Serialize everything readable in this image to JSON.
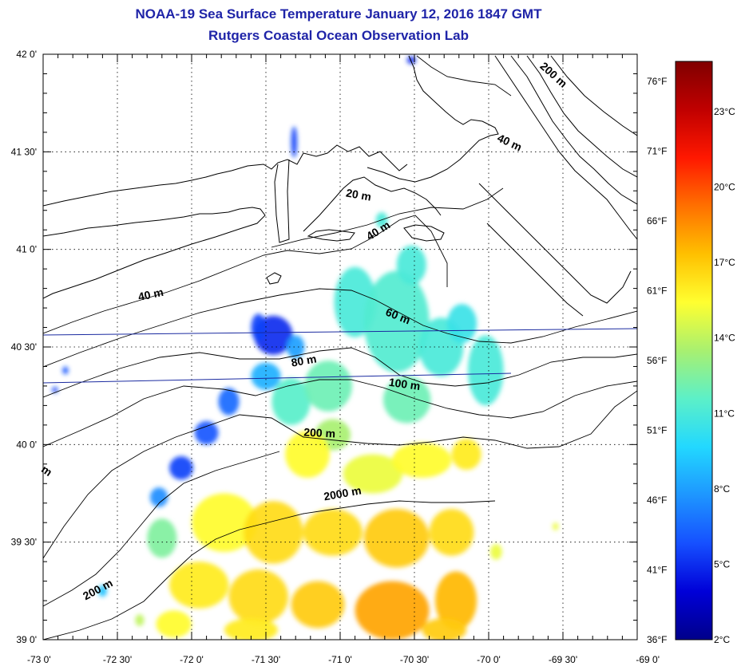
{
  "title": {
    "line1": "NOAA-19 Sea Surface Temperature January 12, 2016 1847 GMT",
    "line2": "Rutgers Coastal Ocean Observation Lab"
  },
  "map": {
    "lon_range": [
      -73,
      -69
    ],
    "lat_range": [
      39,
      42
    ],
    "lon_ticks": [
      {
        "value": -73.0,
        "label": "-73 0'"
      },
      {
        "value": -72.5,
        "label": "-72 30'"
      },
      {
        "value": -72.0,
        "label": "-72 0'"
      },
      {
        "value": -71.5,
        "label": "-71 30'"
      },
      {
        "value": -71.0,
        "label": "-71 0'"
      },
      {
        "value": -70.5,
        "label": "-70 30'"
      },
      {
        "value": -70.0,
        "label": "-70 0'"
      },
      {
        "value": -69.5,
        "label": "-69 30'"
      },
      {
        "value": -69.0,
        "label": "-69 0'"
      }
    ],
    "lat_ticks": [
      {
        "value": 39.0,
        "label": "39 0'"
      },
      {
        "value": 39.5,
        "label": "39 30'"
      },
      {
        "value": 40.0,
        "label": "40 0'"
      },
      {
        "value": 40.5,
        "label": "40 30'"
      },
      {
        "value": 41.0,
        "label": "41 0'"
      },
      {
        "value": 41.5,
        "label": "41 30'"
      },
      {
        "value": 42.0,
        "label": "42 0'"
      }
    ],
    "grid": "dotted",
    "right_f_ticks": [
      {
        "value": 36,
        "label": "36°F"
      },
      {
        "value": 41,
        "label": "41°F"
      },
      {
        "value": 46,
        "label": "46°F"
      },
      {
        "value": 51,
        "label": "51°F"
      },
      {
        "value": 56,
        "label": "56°F"
      },
      {
        "value": 61,
        "label": "61°F"
      },
      {
        "value": 66,
        "label": "66°F"
      },
      {
        "value": 71,
        "label": "71°F"
      },
      {
        "value": 76,
        "label": "76°F"
      }
    ],
    "depth_labels": [
      {
        "text": "20 m",
        "lon": -70.88,
        "lat": 41.26,
        "rot": 10
      },
      {
        "text": "40 m",
        "lon": -70.73,
        "lat": 41.08,
        "rot": -32
      },
      {
        "text": "40 m",
        "lon": -72.27,
        "lat": 40.75,
        "rot": -12
      },
      {
        "text": "40 m",
        "lon": -69.87,
        "lat": 41.53,
        "rot": 25
      },
      {
        "text": "60 m",
        "lon": -70.62,
        "lat": 40.64,
        "rot": 22
      },
      {
        "text": "80 m",
        "lon": -71.24,
        "lat": 40.41,
        "rot": -10
      },
      {
        "text": "100 m",
        "lon": -70.57,
        "lat": 40.29,
        "rot": 8
      },
      {
        "text": "200 m",
        "lon": -71.14,
        "lat": 40.04,
        "rot": 3
      },
      {
        "text": "200 m",
        "lon": -69.58,
        "lat": 41.88,
        "rot": 42
      },
      {
        "text": "200 m",
        "lon": -72.62,
        "lat": 39.24,
        "rot": -28
      },
      {
        "text": "2000 m",
        "lon": -70.98,
        "lat": 39.73,
        "rot": -10
      },
      {
        "text": "m",
        "lon": -72.99,
        "lat": 39.85,
        "rot": 35
      }
    ]
  },
  "colorbar": {
    "range_c": [
      2,
      25
    ],
    "colors": [
      "#00008a",
      "#0000d8",
      "#1650ff",
      "#1e96ff",
      "#22d8ff",
      "#5cf0c8",
      "#a8f070",
      "#ffff30",
      "#ffc000",
      "#ff7000",
      "#ff1800",
      "#c00000",
      "#800000"
    ],
    "ticks": [
      {
        "value": 2,
        "label": "2°C"
      },
      {
        "value": 5,
        "label": "5°C"
      },
      {
        "value": 8,
        "label": "8°C"
      },
      {
        "value": 11,
        "label": "11°C"
      },
      {
        "value": 14,
        "label": "14°C"
      },
      {
        "value": 17,
        "label": "17°C"
      },
      {
        "value": 20,
        "label": "20°C"
      },
      {
        "value": 23,
        "label": "23°C"
      }
    ]
  },
  "sst_patches": [
    {
      "lon": -71.45,
      "lat": 40.56,
      "rx": 0.13,
      "ry": 0.1,
      "t": 5.0
    },
    {
      "lon": -71.55,
      "lat": 40.6,
      "rx": 0.05,
      "ry": 0.07,
      "t": 5.5
    },
    {
      "lon": -71.5,
      "lat": 40.35,
      "rx": 0.1,
      "ry": 0.07,
      "t": 8.5
    },
    {
      "lon": -71.3,
      "lat": 40.5,
      "rx": 0.06,
      "ry": 0.06,
      "t": 8.0
    },
    {
      "lon": -71.75,
      "lat": 40.22,
      "rx": 0.07,
      "ry": 0.07,
      "t": 6.5
    },
    {
      "lon": -71.9,
      "lat": 40.06,
      "rx": 0.08,
      "ry": 0.06,
      "t": 6.0
    },
    {
      "lon": -72.07,
      "lat": 39.88,
      "rx": 0.08,
      "ry": 0.06,
      "t": 5.5
    },
    {
      "lon": -72.22,
      "lat": 39.73,
      "rx": 0.06,
      "ry": 0.05,
      "t": 7.5
    },
    {
      "lon": -71.33,
      "lat": 40.22,
      "rx": 0.13,
      "ry": 0.12,
      "t": 11.5
    },
    {
      "lon": -71.08,
      "lat": 40.3,
      "rx": 0.16,
      "ry": 0.13,
      "t": 12.0
    },
    {
      "lon": -70.9,
      "lat": 40.73,
      "rx": 0.14,
      "ry": 0.18,
      "t": 11.0
    },
    {
      "lon": -70.62,
      "lat": 40.63,
      "rx": 0.22,
      "ry": 0.26,
      "t": 11.3
    },
    {
      "lon": -70.52,
      "lat": 40.92,
      "rx": 0.1,
      "ry": 0.1,
      "t": 11.0
    },
    {
      "lon": -70.32,
      "lat": 40.5,
      "rx": 0.15,
      "ry": 0.15,
      "t": 11.0
    },
    {
      "lon": -70.18,
      "lat": 40.62,
      "rx": 0.1,
      "ry": 0.1,
      "t": 10.5
    },
    {
      "lon": -70.02,
      "lat": 40.38,
      "rx": 0.12,
      "ry": 0.18,
      "t": 11.0
    },
    {
      "lon": -70.55,
      "lat": 40.23,
      "rx": 0.16,
      "ry": 0.12,
      "t": 12.0
    },
    {
      "lon": -71.05,
      "lat": 40.05,
      "rx": 0.12,
      "ry": 0.08,
      "t": 13.5
    },
    {
      "lon": -71.22,
      "lat": 39.95,
      "rx": 0.15,
      "ry": 0.12,
      "t": 15.5
    },
    {
      "lon": -70.78,
      "lat": 39.85,
      "rx": 0.2,
      "ry": 0.1,
      "t": 15.0
    },
    {
      "lon": -70.45,
      "lat": 39.92,
      "rx": 0.2,
      "ry": 0.09,
      "t": 15.5
    },
    {
      "lon": -70.15,
      "lat": 39.95,
      "rx": 0.1,
      "ry": 0.08,
      "t": 16.0
    },
    {
      "lon": -71.78,
      "lat": 39.6,
      "rx": 0.22,
      "ry": 0.15,
      "t": 15.5
    },
    {
      "lon": -71.45,
      "lat": 39.55,
      "rx": 0.2,
      "ry": 0.16,
      "t": 16.5
    },
    {
      "lon": -71.05,
      "lat": 39.55,
      "rx": 0.2,
      "ry": 0.12,
      "t": 16.5
    },
    {
      "lon": -70.62,
      "lat": 39.52,
      "rx": 0.22,
      "ry": 0.15,
      "t": 17.0
    },
    {
      "lon": -70.25,
      "lat": 39.55,
      "rx": 0.15,
      "ry": 0.12,
      "t": 16.5
    },
    {
      "lon": -71.95,
      "lat": 39.28,
      "rx": 0.2,
      "ry": 0.12,
      "t": 16.0
    },
    {
      "lon": -71.55,
      "lat": 39.22,
      "rx": 0.2,
      "ry": 0.14,
      "t": 16.5
    },
    {
      "lon": -71.15,
      "lat": 39.18,
      "rx": 0.18,
      "ry": 0.12,
      "t": 17.0
    },
    {
      "lon": -70.65,
      "lat": 39.15,
      "rx": 0.25,
      "ry": 0.15,
      "t": 18.0
    },
    {
      "lon": -70.22,
      "lat": 39.2,
      "rx": 0.14,
      "ry": 0.15,
      "t": 17.5
    },
    {
      "lon": -72.12,
      "lat": 39.08,
      "rx": 0.12,
      "ry": 0.07,
      "t": 15.5
    },
    {
      "lon": -71.6,
      "lat": 39.05,
      "rx": 0.18,
      "ry": 0.06,
      "t": 16.0
    },
    {
      "lon": -70.3,
      "lat": 39.05,
      "rx": 0.15,
      "ry": 0.06,
      "t": 17.0
    },
    {
      "lon": -72.2,
      "lat": 39.52,
      "rx": 0.1,
      "ry": 0.1,
      "t": 12.5
    },
    {
      "lon": -72.85,
      "lat": 40.38,
      "rx": 0.02,
      "ry": 0.02,
      "t": 6.0
    },
    {
      "lon": -72.92,
      "lat": 40.28,
      "rx": 0.02,
      "ry": 0.015,
      "t": 5.5
    },
    {
      "lon": -71.31,
      "lat": 41.55,
      "rx": 0.02,
      "ry": 0.08,
      "t": 5.5
    },
    {
      "lon": -70.52,
      "lat": 41.97,
      "rx": 0.03,
      "ry": 0.02,
      "t": 5.0
    },
    {
      "lon": -70.72,
      "lat": 41.15,
      "rx": 0.04,
      "ry": 0.04,
      "t": 11.0
    },
    {
      "lon": -72.6,
      "lat": 39.25,
      "rx": 0.03,
      "ry": 0.03,
      "t": 9.0
    },
    {
      "lon": -72.35,
      "lat": 39.1,
      "rx": 0.03,
      "ry": 0.03,
      "t": 14.0
    },
    {
      "lon": -69.95,
      "lat": 39.45,
      "rx": 0.04,
      "ry": 0.04,
      "t": 15.0
    },
    {
      "lon": -69.55,
      "lat": 39.58,
      "rx": 0.02,
      "ry": 0.02,
      "t": 15.0
    }
  ]
}
